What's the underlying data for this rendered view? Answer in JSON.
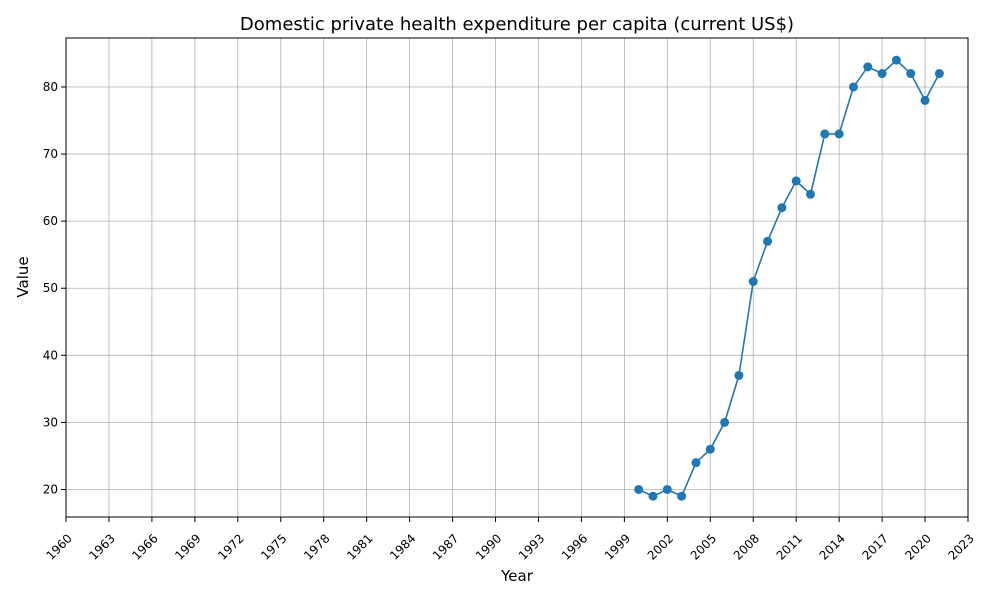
{
  "chart_data": {
    "type": "line",
    "title": "Domestic private health expenditure per capita (current US$)",
    "xlabel": "Year",
    "ylabel": "Value",
    "xlim": [
      1960,
      2023
    ],
    "ylim": [
      15.9,
      87.3
    ],
    "xticks": [
      1960,
      1963,
      1966,
      1969,
      1972,
      1975,
      1978,
      1981,
      1984,
      1987,
      1990,
      1993,
      1996,
      1999,
      2002,
      2005,
      2008,
      2011,
      2014,
      2017,
      2020,
      2023
    ],
    "yticks": [
      20,
      30,
      40,
      50,
      60,
      70,
      80
    ],
    "grid": true,
    "line_color": "#1f77b4",
    "series": [
      {
        "x": [
          2000,
          2001,
          2002,
          2003,
          2004,
          2005,
          2006,
          2007,
          2008,
          2009,
          2010,
          2011,
          2012,
          2013,
          2014,
          2015,
          2016,
          2017,
          2018,
          2019,
          2020,
          2021
        ],
        "values": [
          20,
          19,
          20,
          19,
          24,
          26,
          30,
          37,
          51,
          57,
          62,
          66,
          64,
          73,
          73,
          80,
          83,
          82,
          84,
          82,
          78,
          82
        ]
      }
    ]
  }
}
